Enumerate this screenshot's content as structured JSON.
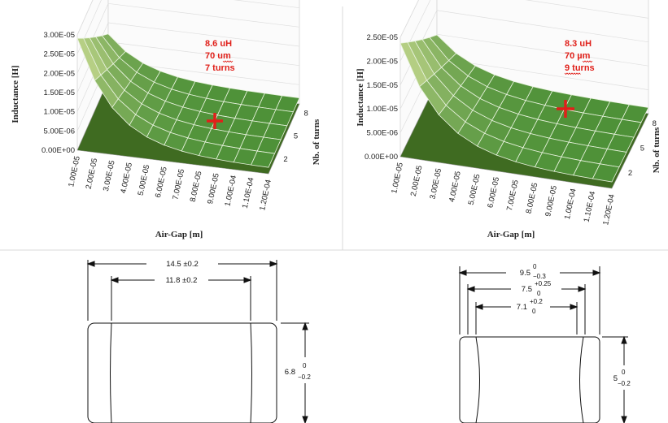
{
  "chart_data": [
    {
      "type": "surface",
      "xlabel": "Air-Gap [m]",
      "ylabel": "Inductance [H]",
      "zlabel": "Nb. of turns",
      "x_ticks": [
        "1.00E-05",
        "2.00E-05",
        "3.00E-05",
        "4.00E-05",
        "5.00E-05",
        "6.00E-05",
        "7.00E-05",
        "8.00E-05",
        "9.00E-05",
        "1.00E-04",
        "1.10E-04",
        "1.20E-04"
      ],
      "y_ticks": [
        "0.00E+00",
        "5.00E-06",
        "1.00E-05",
        "1.50E-05",
        "2.00E-05",
        "2.50E-05",
        "3.00E-05"
      ],
      "z_ticks": [
        "2",
        "5",
        "8"
      ],
      "ylim": [
        0,
        3e-05
      ],
      "annotation": {
        "lines": [
          "8.6 uH",
          "70 um",
          "7 turns"
        ]
      },
      "marker": {
        "airgap": 7e-05,
        "turns": 7,
        "inductance": 8.6e-06
      },
      "surface_color": "#6aa23c"
    },
    {
      "type": "surface",
      "xlabel": "Air-Gap [m]",
      "ylabel": "Inductance [H]",
      "zlabel": "Nb. of turns",
      "x_ticks": [
        "1.00E-05",
        "2.00E-05",
        "3.00E-05",
        "4.00E-05",
        "5.00E-05",
        "6.00E-05",
        "7.00E-05",
        "8.00E-05",
        "9.00E-05",
        "1.00E-04",
        "1.10E-04",
        "1.20E-04"
      ],
      "y_ticks": [
        "0.00E+00",
        "5.00E-06",
        "1.00E-05",
        "1.50E-05",
        "2.00E-05",
        "2.50E-05"
      ],
      "z_ticks": [
        "2",
        "5",
        "8"
      ],
      "ylim": [
        0,
        2.5e-05
      ],
      "annotation": {
        "lines": [
          "8.3 uH",
          "70 µm",
          "9 turns"
        ]
      },
      "marker": {
        "airgap": 7e-05,
        "turns": 9,
        "inductance": 8.3e-06
      },
      "surface_color": "#6aa23c"
    }
  ],
  "drawings": [
    {
      "outer_width": "14.5 ±0.2",
      "inner_width": "11.8 ±0.2",
      "height": {
        "nominal": "6.8",
        "upper": "0",
        "lower": "−0.2"
      }
    },
    {
      "w1": {
        "nominal": "9.5",
        "upper": "0",
        "lower": "−0.3"
      },
      "w2": {
        "nominal": "7.5",
        "upper": "+0.25",
        "lower": "0"
      },
      "w3": {
        "nominal": "7.1",
        "upper": "+0.2",
        "lower": "0"
      },
      "height": {
        "nominal": "5",
        "upper": "0",
        "lower": "−0.2"
      }
    }
  ]
}
